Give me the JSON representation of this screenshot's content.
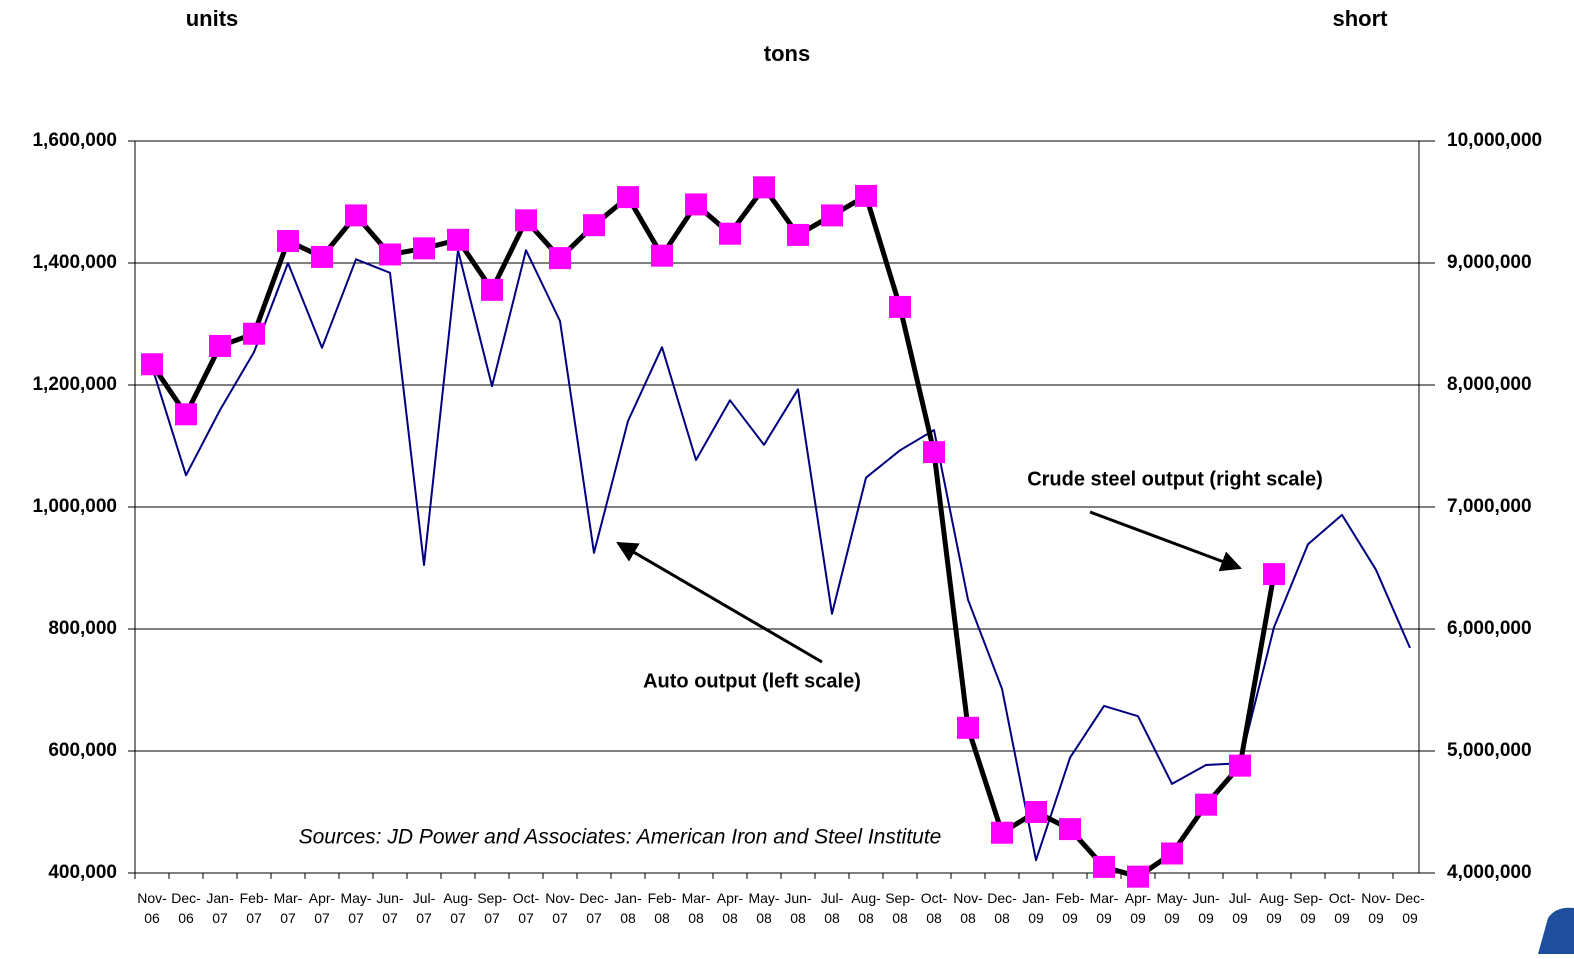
{
  "chart_data": {
    "type": "line",
    "title": "units",
    "subtitle": "tons",
    "y2_title": "short",
    "annotations": [
      "Crude steel output (right scale)",
      "Auto output (left scale)",
      "Sources:  JD Power and Associates: American Iron and Steel Institute"
    ],
    "categories": [
      "Nov-06",
      "Dec-06",
      "Jan-07",
      "Feb-07",
      "Mar-07",
      "Apr-07",
      "May-07",
      "Jun-07",
      "Jul-07",
      "Aug-07",
      "Sep-07",
      "Oct-07",
      "Nov-07",
      "Dec-07",
      "Jan-08",
      "Feb-08",
      "Mar-08",
      "Apr-08",
      "May-08",
      "Jun-08",
      "Jul-08",
      "Aug-08",
      "Sep-08",
      "Oct-08",
      "Nov-08",
      "Dec-08",
      "Jan-09",
      "Feb-09",
      "Mar-09",
      "Apr-09",
      "May-09",
      "Jun-09",
      "Jul-09",
      "Aug-09",
      "Sep-09",
      "Oct-09",
      "Nov-09",
      "Dec-09"
    ],
    "series": [
      {
        "color": "#000080",
        "axis": "y",
        "values": [
          1230000,
          1052000,
          1159000,
          1254000,
          1400000,
          1261000,
          1406000,
          1384000,
          905000,
          1421000,
          1198000,
          1421000,
          1305000,
          925000,
          1141000,
          1262000,
          1077000,
          1175000,
          1102000,
          1193000,
          825000,
          1048000,
          1093000,
          1126000,
          848000,
          702000,
          421000,
          589000,
          674000,
          657000,
          546000,
          577000,
          580000,
          803000,
          939000,
          987000,
          897000,
          769000
        ]
      },
      {
        "color": "#000000",
        "marker_color": "#ff00ff",
        "axis": "y2",
        "values": [
          8170000,
          7760000,
          8320000,
          8420000,
          9180000,
          9050000,
          9390000,
          9070000,
          9120000,
          9190000,
          8780000,
          9350000,
          9040000,
          9310000,
          9540000,
          9060000,
          9480000,
          9240000,
          9620000,
          9230000,
          9390000,
          9550000,
          8640000,
          7450000,
          5190000,
          4330000,
          4500000,
          4360000,
          4050000,
          3970000,
          4160000,
          4560000,
          4880000,
          6450000,
          null,
          null,
          null,
          null
        ]
      }
    ],
    "ylim": [
      400000,
      1600000
    ],
    "yticks": [
      {
        "value": 400000,
        "label": "400,000"
      },
      {
        "value": 600000,
        "label": "600,000"
      },
      {
        "value": 800000,
        "label": "800,000"
      },
      {
        "value": 1000000,
        "label": "1,000,000"
      },
      {
        "value": 1200000,
        "label": "1,200,000"
      },
      {
        "value": 1400000,
        "label": "1,400,000"
      },
      {
        "value": 1600000,
        "label": "1,600,000"
      }
    ],
    "y2lim": [
      4000000,
      10000000
    ],
    "y2ticks": [
      {
        "value": 4000000,
        "label": "4,000,000"
      },
      {
        "value": 5000000,
        "label": "5,000,000"
      },
      {
        "value": 6000000,
        "label": "6,000,000"
      },
      {
        "value": 7000000,
        "label": "7,000,000"
      },
      {
        "value": 8000000,
        "label": "8,000,000"
      },
      {
        "value": 9000000,
        "label": "9,000,000"
      },
      {
        "value": 10000000,
        "label": "10,000,000"
      }
    ],
    "grid": true
  }
}
